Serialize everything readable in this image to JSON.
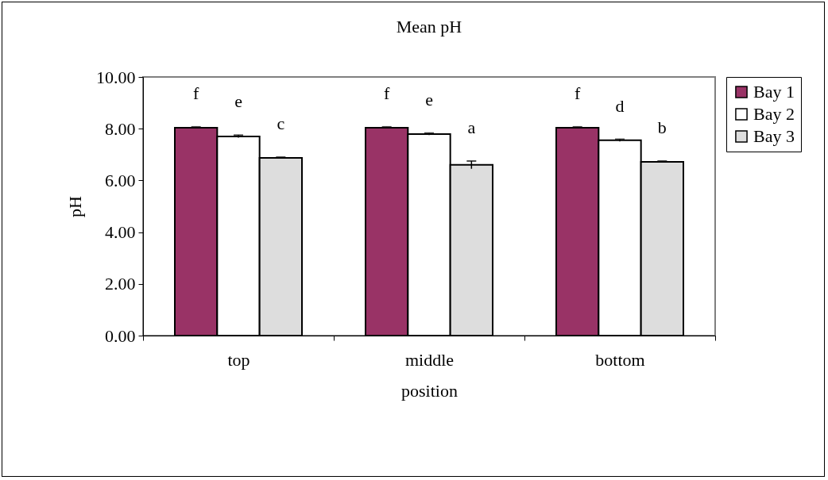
{
  "chart_data": {
    "type": "bar",
    "title": "Mean pH",
    "xlabel": "position",
    "ylabel": "pH",
    "categories": [
      "top",
      "middle",
      "bottom"
    ],
    "series": [
      {
        "name": "Bay 1",
        "color": "#993366",
        "values": [
          8.04,
          8.04,
          8.04
        ],
        "errors": [
          0.03,
          0.03,
          0.03
        ],
        "value_labels": [
          "f",
          "f",
          "f"
        ]
      },
      {
        "name": "Bay 2",
        "color": "#ffffff",
        "values": [
          7.7,
          7.79,
          7.55
        ],
        "errors": [
          0.05,
          0.04,
          0.04
        ],
        "value_labels": [
          "e",
          "e",
          "d"
        ]
      },
      {
        "name": "Bay 3",
        "color": "#dddddd",
        "values": [
          6.87,
          6.6,
          6.72
        ],
        "errors": [
          0.03,
          0.15,
          0.03
        ],
        "value_labels": [
          "c",
          "a",
          "b"
        ]
      }
    ],
    "ylim": [
      0,
      10
    ],
    "yticks": [
      {
        "value": 0,
        "label": "0.00"
      },
      {
        "value": 2,
        "label": "2.00"
      },
      {
        "value": 4,
        "label": "4.00"
      },
      {
        "value": 6,
        "label": "6.00"
      },
      {
        "value": 8,
        "label": "8.00"
      },
      {
        "value": 10,
        "label": "10.00"
      }
    ],
    "legend": "right",
    "grid": false
  }
}
